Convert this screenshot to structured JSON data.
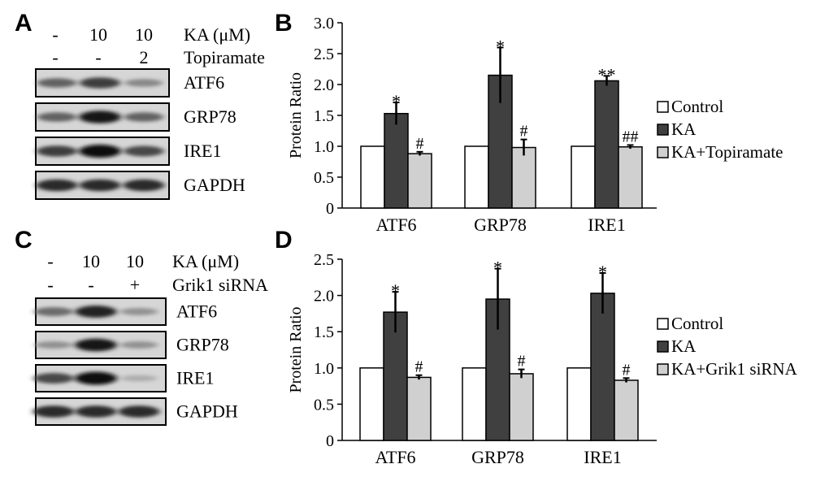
{
  "panels": {
    "A": {
      "letter": "A",
      "lanes": [
        {
          "ka": "-",
          "treat": "-"
        },
        {
          "ka": "10",
          "treat": "-"
        },
        {
          "ka": "10",
          "treat": "2"
        }
      ],
      "ka_label": "KA (μM)",
      "treat_label": "Topiramate",
      "blots": [
        "ATF6",
        "GRP78",
        "IRE1",
        "GAPDH"
      ],
      "intensities": [
        [
          0.55,
          0.75,
          0.35
        ],
        [
          0.55,
          0.95,
          0.55
        ],
        [
          0.75,
          1.0,
          0.7
        ],
        [
          0.85,
          0.85,
          0.85
        ]
      ]
    },
    "C": {
      "letter": "C",
      "lanes": [
        {
          "ka": "-",
          "treat": "-"
        },
        {
          "ka": "10",
          "treat": "-"
        },
        {
          "ka": "10",
          "treat": "+"
        }
      ],
      "ka_label": "KA (μM)",
      "treat_label": "Grik1 siRNA",
      "blots": [
        "ATF6",
        "GRP78",
        "IRE1",
        "GAPDH"
      ],
      "intensities": [
        [
          0.5,
          0.9,
          0.3
        ],
        [
          0.3,
          0.95,
          0.3
        ],
        [
          0.7,
          1.0,
          0.15
        ],
        [
          0.85,
          0.85,
          0.85
        ]
      ]
    }
  },
  "chart_data": [
    {
      "panel": "B",
      "type": "bar",
      "ylabel": "Protein Ratio",
      "ylim": [
        0,
        3.0
      ],
      "yticks": [
        "0",
        "0.5",
        "1.0",
        "1.5",
        "2.0",
        "2.5",
        "3.0"
      ],
      "categories": [
        "ATF6",
        "GRP78",
        "IRE1"
      ],
      "series": [
        {
          "name": "Control",
          "color": "#ffffff",
          "values": [
            1.0,
            1.0,
            1.0
          ],
          "errors": [
            0,
            0,
            0
          ],
          "marks": [
            "",
            "",
            ""
          ]
        },
        {
          "name": "KA",
          "color": "#404040",
          "values": [
            1.53,
            2.15,
            2.06
          ],
          "errors": [
            0.18,
            0.45,
            0.08
          ],
          "marks": [
            "*",
            "*",
            "**"
          ]
        },
        {
          "name": "KA+Topiramate",
          "color": "#d0d0d0",
          "values": [
            0.88,
            0.98,
            0.99
          ],
          "errors": [
            0.03,
            0.13,
            0.03
          ],
          "marks": [
            "#",
            "#",
            "##"
          ]
        }
      ]
    },
    {
      "panel": "D",
      "type": "bar",
      "ylabel": "Protein Ratio",
      "ylim": [
        0,
        2.5
      ],
      "yticks": [
        "0",
        "0.5",
        "1.0",
        "1.5",
        "2.0",
        "2.5"
      ],
      "categories": [
        "ATF6",
        "GRP78",
        "IRE1"
      ],
      "series": [
        {
          "name": "Control",
          "color": "#ffffff",
          "values": [
            1.0,
            1.0,
            1.0
          ],
          "errors": [
            0,
            0,
            0
          ],
          "marks": [
            "",
            "",
            ""
          ]
        },
        {
          "name": "KA",
          "color": "#404040",
          "values": [
            1.77,
            1.95,
            2.03
          ],
          "errors": [
            0.28,
            0.42,
            0.28
          ],
          "marks": [
            "*",
            "*",
            "*"
          ]
        },
        {
          "name": "KA+Grik1 siRNA",
          "color": "#d0d0d0",
          "values": [
            0.87,
            0.92,
            0.83
          ],
          "errors": [
            0.03,
            0.06,
            0.03
          ],
          "marks": [
            "#",
            "#",
            "#"
          ]
        }
      ]
    }
  ]
}
